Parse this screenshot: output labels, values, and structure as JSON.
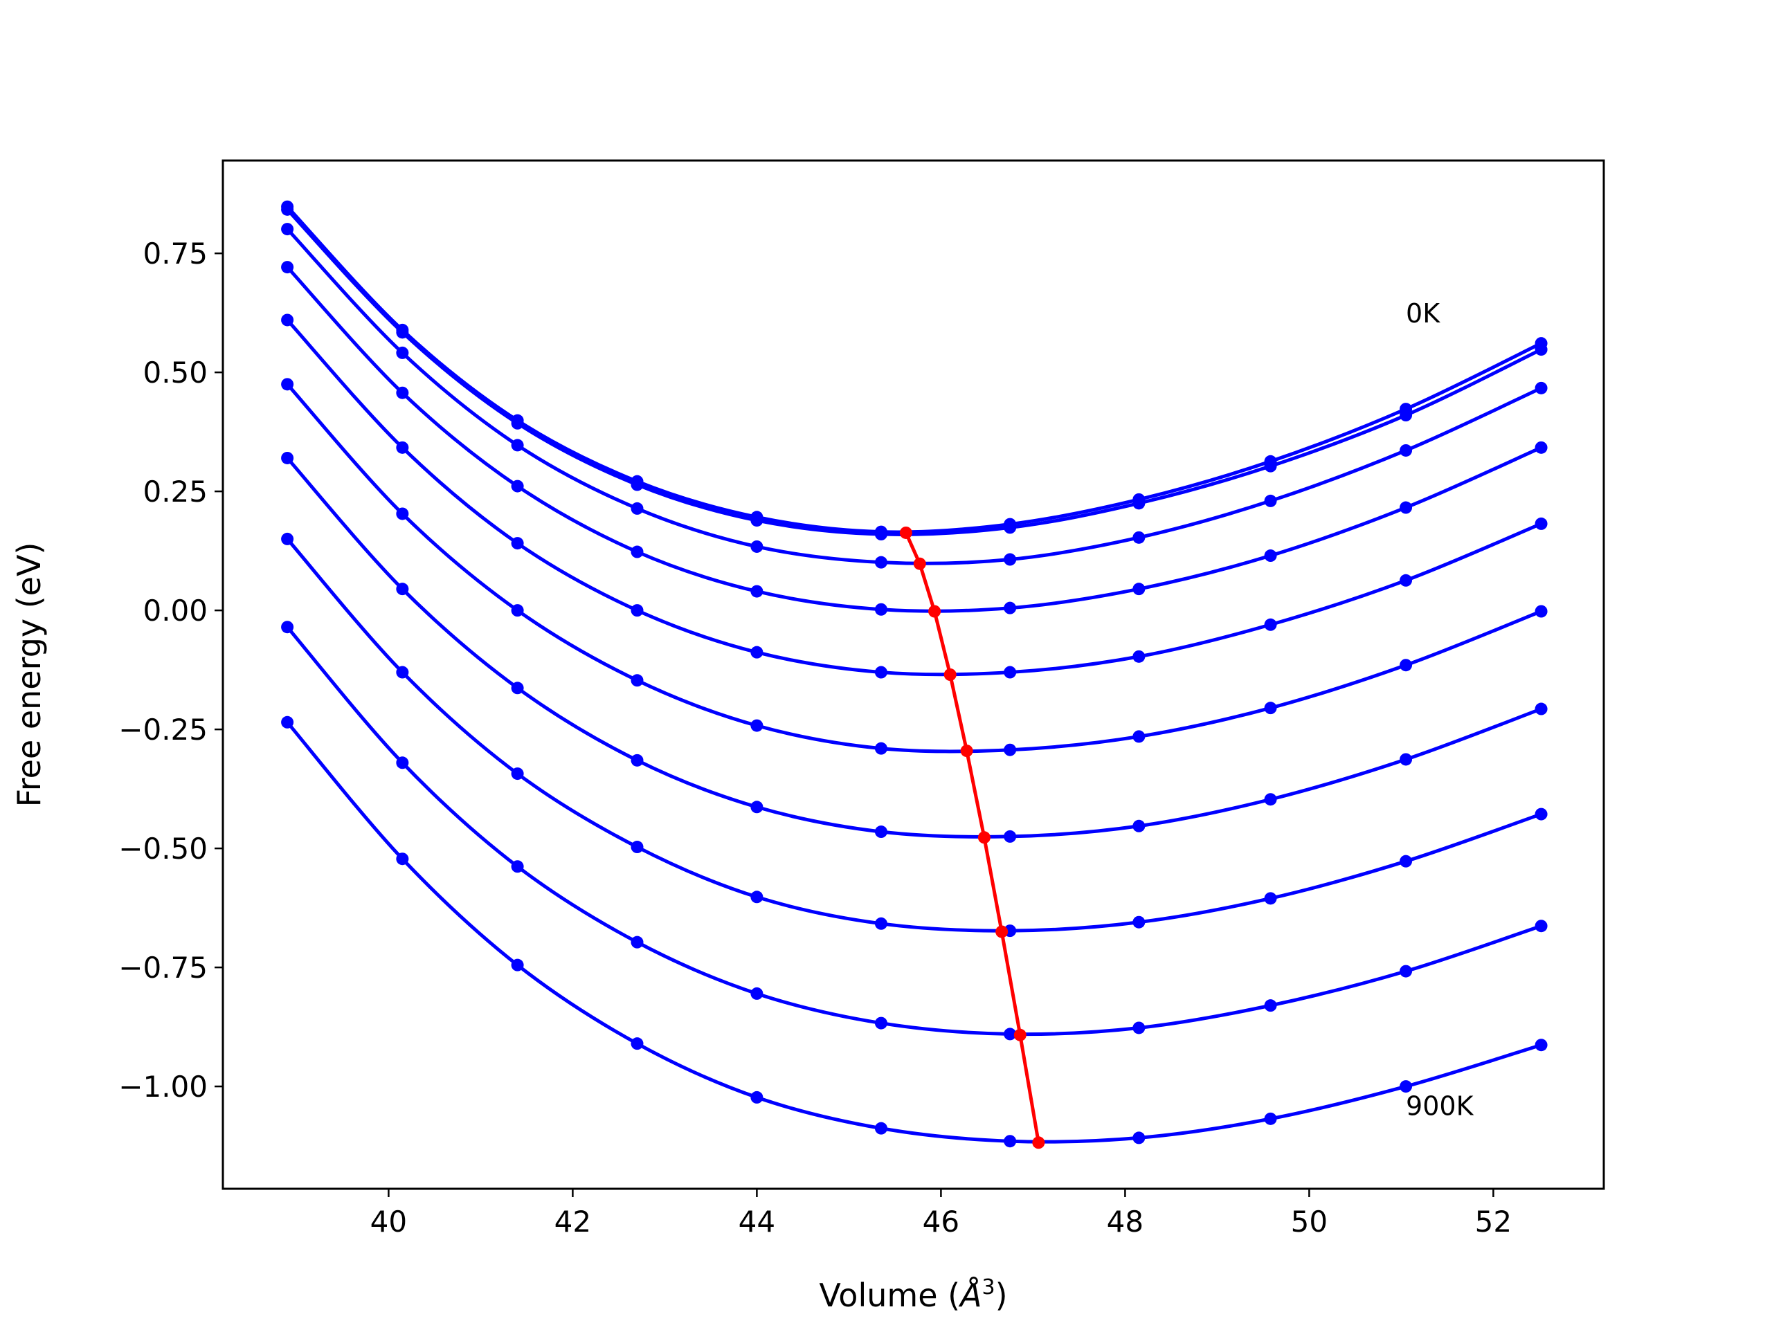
{
  "chart_data": {
    "type": "line",
    "title": "",
    "xlabel": "Volume",
    "xlabel_unit": "Å",
    "xlabel_unit_power": "3",
    "ylabel": "Free energy (eV)",
    "xlim": [
      38.2,
      53.2
    ],
    "ylim": [
      -1.215,
      0.945
    ],
    "x_ticks": [
      40,
      42,
      44,
      46,
      48,
      50,
      52
    ],
    "x_tick_labels": [
      "40",
      "42",
      "44",
      "46",
      "48",
      "50",
      "52"
    ],
    "y_ticks": [
      0.75,
      0.5,
      0.25,
      0.0,
      -0.25,
      -0.5,
      -0.75,
      -1.0
    ],
    "y_tick_labels": [
      "0.75",
      "0.50",
      "0.25",
      "0.00",
      "−0.25",
      "−0.50",
      "−0.75",
      "−1.00"
    ],
    "grid": false,
    "colors": {
      "curves": "#0000ff",
      "minimum_line": "#ff0000",
      "frame": "#000000"
    },
    "x": [
      38.9,
      40.15,
      41.4,
      42.7,
      44.0,
      45.35,
      46.75,
      48.15,
      49.58,
      51.05,
      52.52
    ],
    "series": [
      {
        "values": [
          0.848,
          0.589,
          0.399,
          0.271,
          0.196,
          0.165,
          0.181,
          0.233,
          0.313,
          0.423,
          0.561
        ]
      },
      {
        "values": [
          0.842,
          0.584,
          0.393,
          0.264,
          0.189,
          0.16,
          0.174,
          0.225,
          0.303,
          0.41,
          0.548
        ]
      },
      {
        "values": [
          0.801,
          0.541,
          0.347,
          0.214,
          0.134,
          0.101,
          0.107,
          0.153,
          0.23,
          0.336,
          0.467
        ]
      },
      {
        "values": [
          0.721,
          0.457,
          0.261,
          0.123,
          0.04,
          0.002,
          0.005,
          0.045,
          0.115,
          0.216,
          0.342
        ]
      },
      {
        "values": [
          0.61,
          0.342,
          0.141,
          0.0,
          -0.088,
          -0.13,
          -0.13,
          -0.097,
          -0.03,
          0.063,
          0.182
        ]
      },
      {
        "values": [
          0.475,
          0.203,
          0.0,
          -0.147,
          -0.242,
          -0.29,
          -0.293,
          -0.265,
          -0.205,
          -0.115,
          -0.002
        ]
      },
      {
        "values": [
          0.32,
          0.045,
          -0.163,
          -0.315,
          -0.413,
          -0.465,
          -0.475,
          -0.453,
          -0.397,
          -0.313,
          -0.207
        ]
      },
      {
        "values": [
          0.15,
          -0.13,
          -0.343,
          -0.497,
          -0.602,
          -0.658,
          -0.673,
          -0.655,
          -0.605,
          -0.527,
          -0.428
        ]
      },
      {
        "values": [
          -0.035,
          -0.32,
          -0.538,
          -0.697,
          -0.805,
          -0.867,
          -0.89,
          -0.877,
          -0.83,
          -0.758,
          -0.663
        ]
      },
      {
        "values": [
          -0.235,
          -0.522,
          -0.745,
          -0.91,
          -1.023,
          -1.088,
          -1.115,
          -1.108,
          -1.068,
          -1.0,
          -0.913
        ]
      }
    ],
    "minimum_line": {
      "x": [
        45.62,
        45.77,
        45.93,
        46.1,
        46.28,
        46.47,
        46.66,
        46.86,
        47.06
      ],
      "y": [
        0.163,
        0.098,
        -0.002,
        -0.135,
        -0.295,
        -0.477,
        -0.675,
        -0.892,
        -1.118
      ]
    },
    "annotations": [
      {
        "text": "0K",
        "x": 51.05,
        "y": 0.625
      },
      {
        "text": "900K",
        "x": 51.05,
        "y": -1.04
      }
    ]
  }
}
